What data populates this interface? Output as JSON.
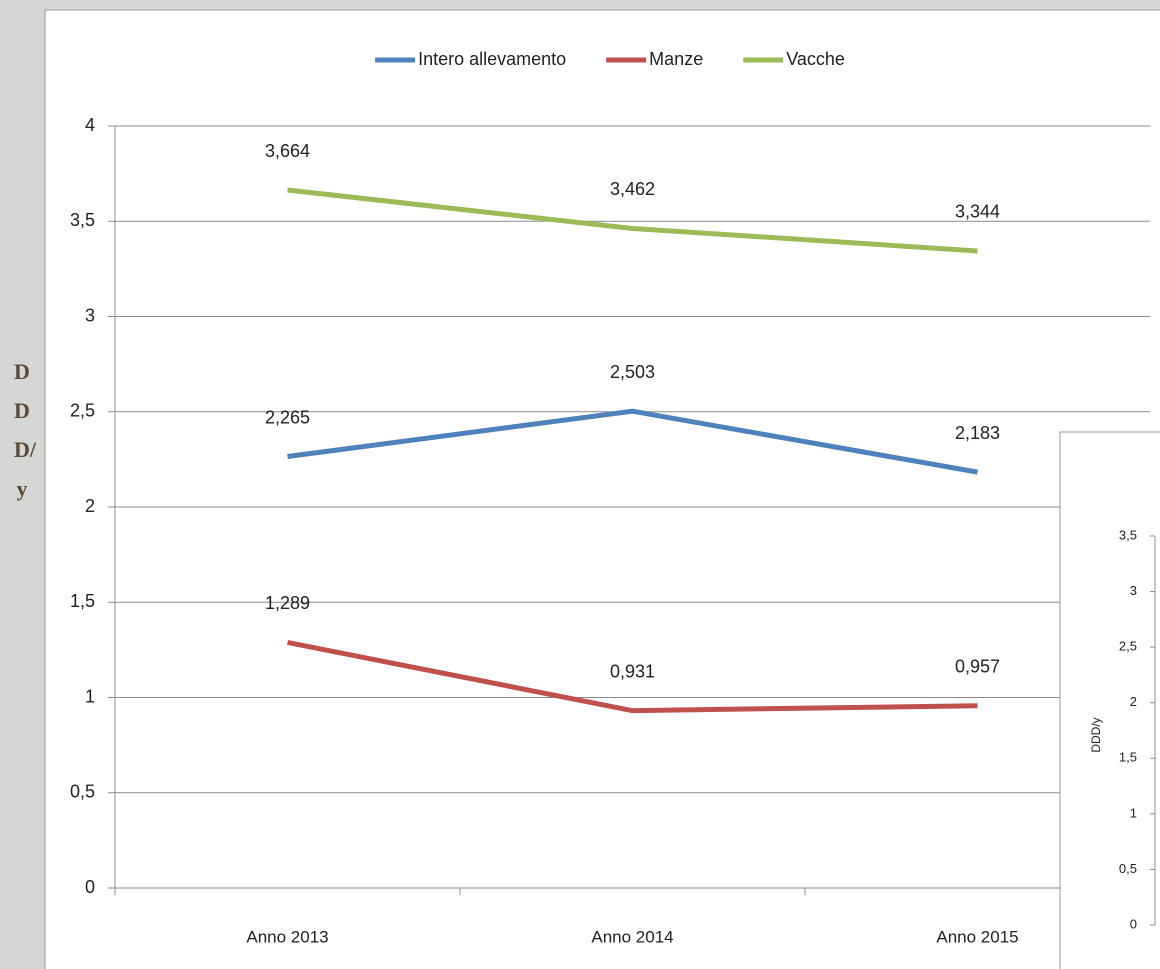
{
  "chart_data": [
    {
      "type": "line",
      "y_label": "DDD/y",
      "categories": [
        "Anno 2013",
        "Anno 2014",
        "Anno 2015"
      ],
      "series": [
        {
          "name": "Intero allevamento",
          "color": "#4f81bd",
          "values": [
            2.265,
            2.503,
            2.183
          ],
          "value_labels": [
            "2,265",
            "2,503",
            "2,183"
          ]
        },
        {
          "name": "Manze",
          "color": "#c0504d",
          "values": [
            1.289,
            0.931,
            0.957
          ],
          "value_labels": [
            "1,289",
            "0,931",
            "0,957"
          ]
        },
        {
          "name": "Vacche",
          "color": "#9bbb59",
          "values": [
            3.664,
            3.462,
            3.344
          ],
          "value_labels": [
            "3,664",
            "3,462",
            "3,344"
          ]
        }
      ],
      "ylim": [
        0,
        4
      ],
      "yticks": [
        0,
        {
          "value": 0.5,
          "label": "0,5"
        },
        1,
        {
          "value": 1.5,
          "label": "1,5"
        },
        2,
        {
          "value": 2.5,
          "label": "2,5"
        },
        3,
        {
          "value": 3.5,
          "label": "3,5"
        },
        4
      ],
      "grid": true,
      "legend": "top"
    },
    {
      "type": "line",
      "y_label": "DDD/y",
      "ylim": [
        0,
        3.5
      ],
      "yticks": [
        0,
        {
          "value": 0.5,
          "label": "0,5"
        },
        1,
        {
          "value": 1.5,
          "label": "1,5"
        },
        2,
        {
          "value": 2.5,
          "label": "2,5"
        },
        3,
        {
          "value": 3.5,
          "label": "3,5"
        }
      ]
    }
  ]
}
